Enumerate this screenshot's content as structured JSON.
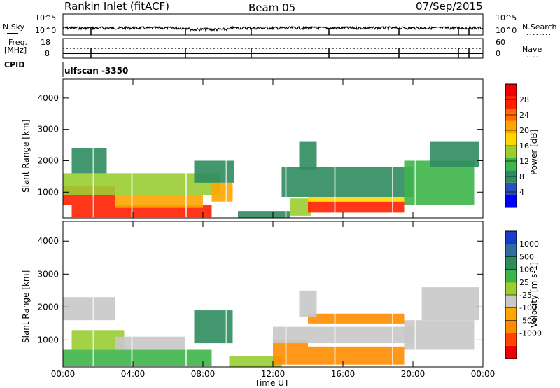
{
  "header": {
    "station": "Rankin Inlet (fitACF)",
    "beam": "Beam 05",
    "date": "07/Sep/2015"
  },
  "nsky_panel": {
    "left_label": "N.Sky",
    "left_ticks": [
      "10^5",
      "10^0"
    ],
    "right_ticks": [
      "10^5",
      "10^0"
    ],
    "right_label": "N.Search",
    "right_legend": "........"
  },
  "freq_panel": {
    "left_label_1": "Freq.",
    "left_label_2": "[MHz]",
    "left_ticks": [
      "18",
      "8"
    ],
    "right_ticks": [
      "60",
      "0"
    ],
    "right_label": "Nave",
    "right_legend": "...."
  },
  "cpid": {
    "label": "CPID",
    "value": "ulfscan -3350"
  },
  "chart_data": [
    {
      "type": "heatmap",
      "name": "power",
      "ylabel": "Slant Range [km]",
      "yticks": [
        "1000",
        "2000",
        "3000",
        "4000"
      ],
      "ylim": [
        180,
        4600
      ],
      "xlim": [
        "00:00",
        "24:00"
      ],
      "colorbar_label": "Power [dB]",
      "colorbar_ticks": [
        "4",
        "8",
        "12",
        "16",
        "20",
        "24",
        "28"
      ],
      "colorbar_colors": [
        "#0000ff",
        "#2a4fbf",
        "#2f8c5e",
        "#3db54a",
        "#9acd32",
        "#ffd700",
        "#ffa500",
        "#ff6a00",
        "#ff2000",
        "#ee0000"
      ],
      "bands": [
        {
          "t0": 0.5,
          "t1": 8.5,
          "r0": 200,
          "r1": 600,
          "value_db": 26
        },
        {
          "t0": 0.0,
          "t1": 3.0,
          "r0": 600,
          "r1": 1200,
          "value_db": 24
        },
        {
          "t0": 3.0,
          "t1": 8.0,
          "r0": 500,
          "r1": 900,
          "value_db": 18
        },
        {
          "t0": 0.0,
          "t1": 9.0,
          "r0": 900,
          "r1": 1600,
          "value_db": 12
        },
        {
          "t0": 8.5,
          "t1": 9.7,
          "r0": 700,
          "r1": 1300,
          "value_db": 20
        },
        {
          "t0": 7.5,
          "t1": 9.8,
          "r0": 1300,
          "r1": 2000,
          "value_db": 8
        },
        {
          "t0": 10.0,
          "t1": 13.0,
          "r0": 180,
          "r1": 400,
          "value_db": 6
        },
        {
          "t0": 13.0,
          "t1": 14.2,
          "r0": 250,
          "r1": 800,
          "value_db": 14
        },
        {
          "t0": 14.0,
          "t1": 19.5,
          "r0": 350,
          "r1": 700,
          "value_db": 24
        },
        {
          "t0": 14.0,
          "t1": 19.5,
          "r0": 700,
          "r1": 850,
          "value_db": 16
        },
        {
          "t0": 12.5,
          "t1": 20.0,
          "r0": 850,
          "r1": 1800,
          "value_db": 8
        },
        {
          "t0": 19.5,
          "t1": 23.5,
          "r0": 600,
          "r1": 2000,
          "value_db": 10
        },
        {
          "t0": 21.0,
          "t1": 23.8,
          "r0": 1800,
          "r1": 2600,
          "value_db": 6
        },
        {
          "t0": 0.5,
          "t1": 2.5,
          "r0": 1600,
          "r1": 2400,
          "value_db": 8
        },
        {
          "t0": 13.5,
          "t1": 14.5,
          "r0": 1700,
          "r1": 2600,
          "value_db": 8
        }
      ]
    },
    {
      "type": "heatmap",
      "name": "velocity",
      "ylabel": "Slant Range [km]",
      "yticks": [
        "1000",
        "2000",
        "3000",
        "4000"
      ],
      "ylim": [
        180,
        4600
      ],
      "xlim": [
        "00:00",
        "24:00"
      ],
      "xticks": [
        "00:00",
        "04:00",
        "08:00",
        "12:00",
        "16:00",
        "20:00",
        "00:00"
      ],
      "xlabel": "Time UT",
      "colorbar_label": "Velocity [m s-1]",
      "colorbar_ticks": [
        "1000",
        "500",
        "100",
        "25",
        "-25",
        "-100",
        "-500",
        "-1000"
      ],
      "colorbar_colors": [
        "#1a3ccc",
        "#2e6fa0",
        "#2f8c5e",
        "#3db54a",
        "#9acd32",
        "#c8c8c8",
        "#ffa500",
        "#ff8c00",
        "#ff4500",
        "#ee0000"
      ],
      "bands": [
        {
          "t0": 0.0,
          "t1": 8.5,
          "r0": 200,
          "r1": 700,
          "value_ms": 150
        },
        {
          "t0": 0.5,
          "t1": 3.5,
          "r0": 700,
          "r1": 1300,
          "value_ms": 60
        },
        {
          "t0": 3.0,
          "t1": 7.0,
          "r0": 700,
          "r1": 1100,
          "value_ms": 0
        },
        {
          "t0": 0.0,
          "t1": 3.0,
          "r0": 1600,
          "r1": 2300,
          "value_ms": 0
        },
        {
          "t0": 7.5,
          "t1": 9.7,
          "r0": 900,
          "r1": 1900,
          "value_ms": 600
        },
        {
          "t0": 9.5,
          "t1": 12.5,
          "r0": 180,
          "r1": 500,
          "value_ms": 60
        },
        {
          "t0": 12.0,
          "t1": 14.0,
          "r0": 250,
          "r1": 1000,
          "value_ms": -200
        },
        {
          "t0": 14.0,
          "t1": 19.5,
          "r0": 250,
          "r1": 800,
          "value_ms": -200
        },
        {
          "t0": 14.0,
          "t1": 19.5,
          "r0": 1500,
          "r1": 1800,
          "value_ms": -200
        },
        {
          "t0": 12.0,
          "t1": 20.0,
          "r0": 900,
          "r1": 1400,
          "value_ms": 0
        },
        {
          "t0": 19.5,
          "t1": 23.5,
          "r0": 700,
          "r1": 1600,
          "value_ms": 0
        },
        {
          "t0": 20.5,
          "t1": 23.8,
          "r0": 1600,
          "r1": 2600,
          "value_ms": 0
        },
        {
          "t0": 13.5,
          "t1": 14.5,
          "r0": 1700,
          "r1": 2500,
          "value_ms": 0
        }
      ]
    }
  ]
}
